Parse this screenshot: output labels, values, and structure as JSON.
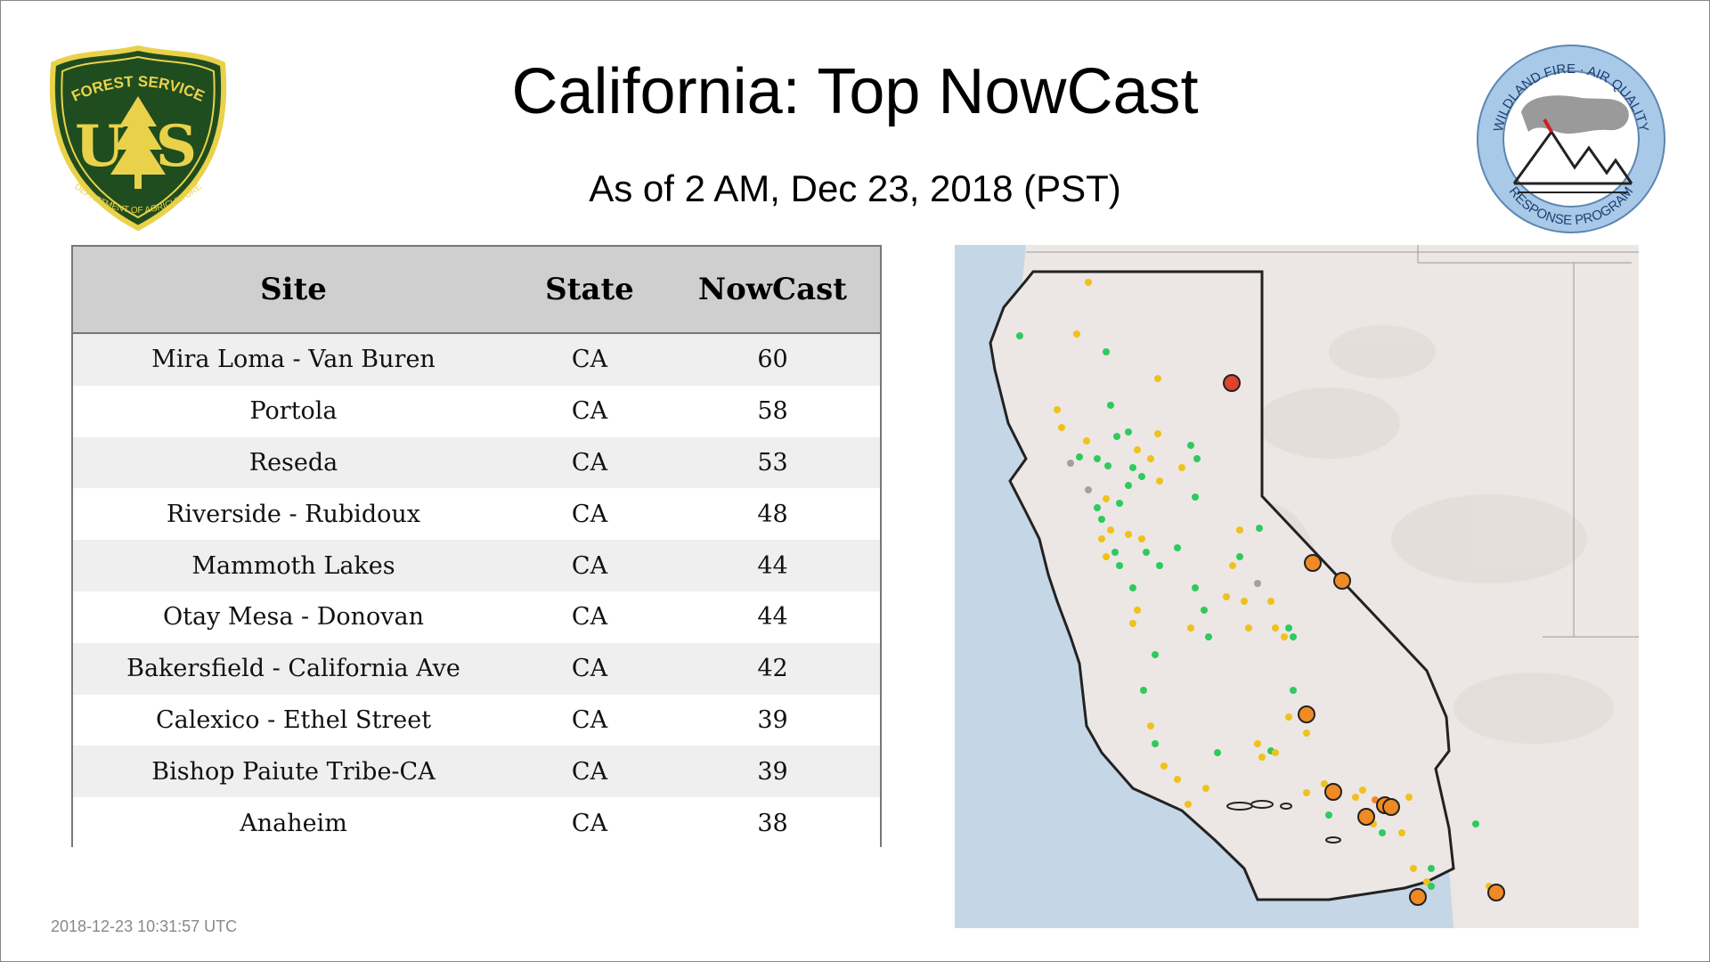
{
  "header": {
    "title": "California: Top NowCast",
    "subtitle": "As of  2 AM, Dec 23, 2018 (PST)"
  },
  "logos": {
    "left": {
      "top_text": "FOREST SERVICE",
      "letters_left": "U",
      "letters_right": "S",
      "bottom_text": "DEPARTMENT OF AGRICULTURE",
      "colors": {
        "green": "#1f4d1f",
        "gold": "#e9d24a"
      }
    },
    "right": {
      "top_text": "WILDLAND FIRE · AIR QUALITY",
      "bottom_text": "RESPONSE PROGRAM",
      "colors": {
        "ring": "#a9c9e9",
        "text": "#1f3f6f"
      }
    }
  },
  "table": {
    "columns": [
      "Site",
      "State",
      "NowCast"
    ],
    "rows": [
      {
        "site": "Mira Loma - Van Buren",
        "state": "CA",
        "nowcast": "60"
      },
      {
        "site": "Portola",
        "state": "CA",
        "nowcast": "58"
      },
      {
        "site": "Reseda",
        "state": "CA",
        "nowcast": "53"
      },
      {
        "site": "Riverside - Rubidoux",
        "state": "CA",
        "nowcast": "48"
      },
      {
        "site": "Mammoth Lakes",
        "state": "CA",
        "nowcast": "44"
      },
      {
        "site": "Otay Mesa - Donovan",
        "state": "CA",
        "nowcast": "44"
      },
      {
        "site": "Bakersfield - California Ave",
        "state": "CA",
        "nowcast": "42"
      },
      {
        "site": "Calexico - Ethel Street",
        "state": "CA",
        "nowcast": "39"
      },
      {
        "site": "Bishop Paiute Tribe-CA",
        "state": "CA",
        "nowcast": "39"
      },
      {
        "site": "Anaheim",
        "state": "CA",
        "nowcast": "38"
      }
    ]
  },
  "map": {
    "colors": {
      "ocean": "#c5d6e6",
      "land": "#ece7e4",
      "border": "#222222",
      "good": "#2fca5f",
      "moderate": "#f0c11b",
      "usg": "#f08a24",
      "unhealthy": "#e0432b",
      "nodata": "#a0a0a0"
    }
  },
  "footer": {
    "timestamp": "2018-12-23 10:31:57 UTC"
  }
}
